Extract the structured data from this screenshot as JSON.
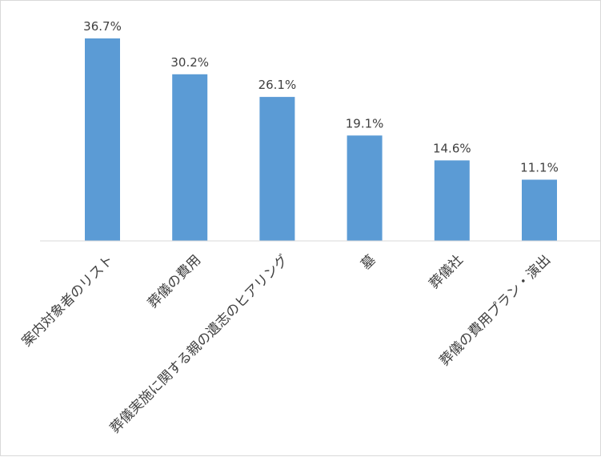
{
  "chart_data": {
    "type": "bar",
    "title": "",
    "xlabel": "",
    "ylabel": "",
    "categories": [
      "案内対象者のリスト",
      "葬儀の費用",
      "葬儀実施に関する親の遺志のヒアリング",
      "墓",
      "葬儀社",
      "葬儀の費用プラン・演出"
    ],
    "values": [
      36.7,
      30.2,
      26.1,
      19.1,
      14.6,
      11.1
    ],
    "data_labels": [
      "36.7%",
      "30.2%",
      "26.1%",
      "19.1%",
      "14.6%",
      "11.1%"
    ],
    "ylim": [
      0,
      36.7
    ],
    "grid": false,
    "legend": "none",
    "bar_color": "#5b9bd5",
    "axis_color": "#d9d9d9",
    "text_color": "#404040"
  }
}
